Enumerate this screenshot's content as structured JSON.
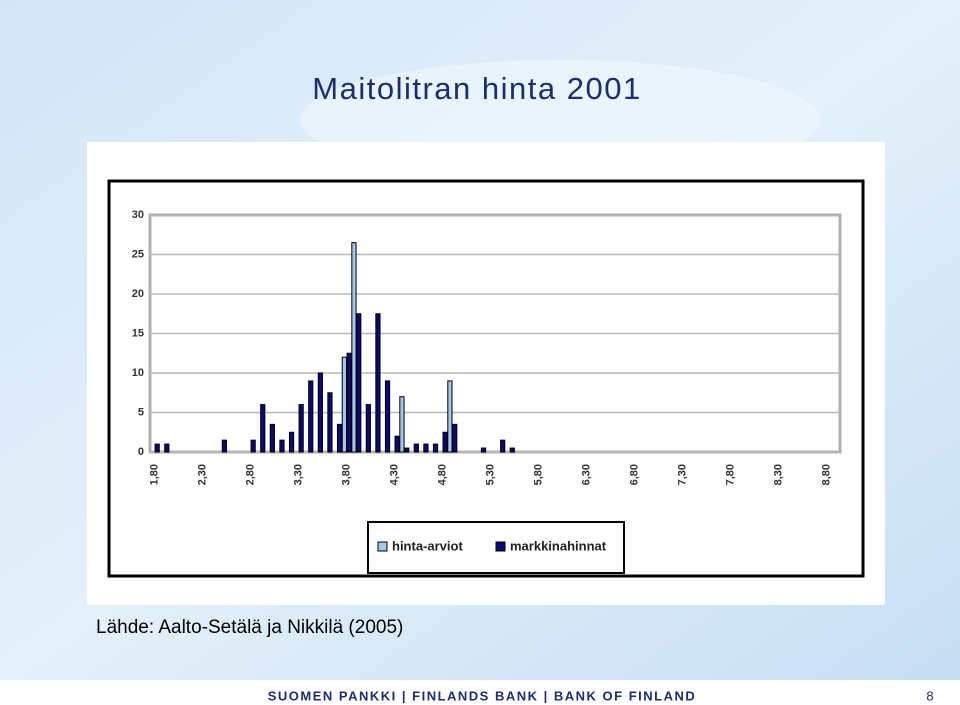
{
  "slide": {
    "title": "Maitolitran hinta 2001",
    "source": "Lähde: Aalto-Setälä ja Nikkilä (2005)",
    "footer": "SUOMEN PANKKI | FINLANDS BANK | BANK OF FINLAND",
    "page": "8"
  },
  "chart_data": {
    "type": "bar",
    "categories": [
      "1,80",
      null,
      null,
      null,
      null,
      "2,30",
      null,
      null,
      null,
      null,
      "2,80",
      null,
      null,
      null,
      null,
      "3,30",
      null,
      null,
      null,
      null,
      "3,80",
      null,
      null,
      null,
      null,
      "4,30",
      null,
      null,
      null,
      null,
      "4,80",
      null,
      null,
      null,
      null,
      "5,30",
      null,
      null,
      null,
      null,
      "5,80",
      null,
      null,
      null,
      null,
      "6,30",
      null,
      null,
      null,
      null,
      "6,80",
      null,
      null,
      null,
      null,
      "7,30",
      null,
      null,
      null,
      null,
      "7,80",
      null,
      null,
      null,
      null,
      "8,30",
      null,
      null,
      null,
      null,
      "8,80",
      null
    ],
    "series": [
      {
        "name": "hinta-arviot",
        "color": "#a6c8ec",
        "values": [
          0,
          0,
          0,
          0,
          0,
          0,
          0,
          0,
          0,
          0,
          0,
          0,
          0,
          0,
          0,
          0,
          0,
          0,
          0,
          0,
          12,
          26.5,
          0,
          0,
          0,
          0,
          7,
          0,
          0,
          0,
          0,
          9,
          0,
          0,
          0,
          0,
          0,
          0,
          0,
          0,
          0,
          0,
          0,
          0,
          0,
          0,
          0,
          0,
          0,
          0,
          0,
          0,
          0,
          0,
          0,
          0,
          0,
          0,
          0,
          0,
          0,
          0,
          0,
          0,
          0,
          0,
          0,
          0,
          0,
          0,
          0,
          0
        ]
      },
      {
        "name": "markkinahinnat",
        "color": "#0a0a78",
        "values": [
          1,
          1,
          0,
          0,
          0,
          0,
          0,
          1.5,
          0,
          0,
          1.5,
          6,
          3.5,
          1.5,
          2.5,
          6,
          9,
          10,
          7.5,
          3.5,
          12.5,
          17.5,
          6,
          17.5,
          9,
          2,
          0.5,
          1,
          1,
          1,
          2.5,
          3.5,
          0,
          0,
          0.5,
          0,
          1.5,
          0.5,
          0,
          0,
          0,
          0,
          0,
          0,
          0,
          0,
          0,
          0,
          0,
          0,
          0,
          0,
          0,
          0,
          0,
          0,
          0,
          0,
          0,
          0,
          0,
          0,
          0,
          0,
          0,
          0,
          0,
          0,
          0,
          0,
          0,
          0
        ]
      }
    ],
    "ylim": [
      0,
      30
    ],
    "yticks": [
      0,
      5,
      10,
      15,
      20,
      25,
      30
    ],
    "grid": true,
    "legend": "bottom"
  }
}
